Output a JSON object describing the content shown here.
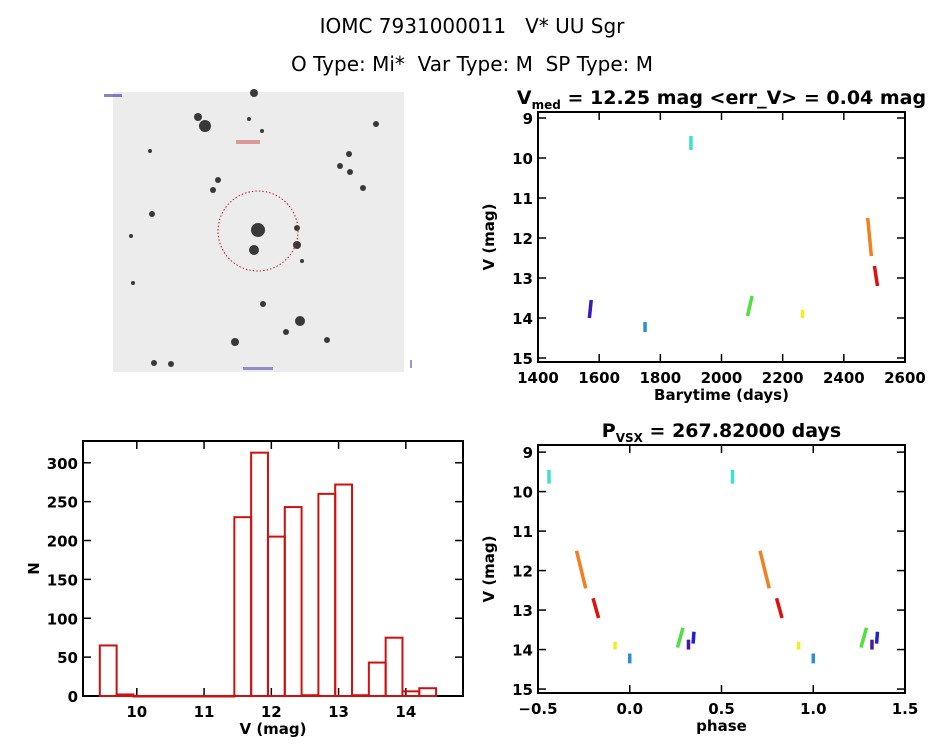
{
  "header": {
    "title": "IOMC 7931000011   V* UU Sgr",
    "subtitle": "O Type: Mi*  Var Type: M  SP Type: M"
  },
  "image_panel": {
    "description_label": "V* UU Sgr field image"
  },
  "chart_data": [
    {
      "type": "scatter",
      "title": "V_med = 12.25 mag <err_V> = 0.04 mag",
      "title_main": "V",
      "title_sub": "med",
      "title_rest": " = 12.25 mag <err_V> = 0.04 mag",
      "xlabel": "Barytime (days)",
      "ylabel": "V (mag)",
      "xlim": [
        1400,
        2600
      ],
      "ylim": [
        15.1,
        8.85
      ],
      "xticks": [
        1400,
        1600,
        1800,
        2000,
        2200,
        2400,
        2600
      ],
      "yticks": [
        9,
        10,
        11,
        12,
        13,
        14,
        15
      ],
      "segments": [
        {
          "x": [
            1568,
            1574
          ],
          "y": [
            14.0,
            13.55
          ],
          "color": "#3a1ab8"
        },
        {
          "x": [
            1750,
            1750
          ],
          "y": [
            14.35,
            14.1
          ],
          "color": "#2a8fd8"
        },
        {
          "x": [
            1900,
            1900
          ],
          "y": [
            9.8,
            9.45
          ],
          "color": "#40e0d0"
        },
        {
          "x": [
            2085,
            2100
          ],
          "y": [
            13.95,
            13.45
          ],
          "color": "#50e040"
        },
        {
          "x": [
            2265,
            2265
          ],
          "y": [
            14.0,
            13.8
          ],
          "color": "#f0f020"
        },
        {
          "x": [
            2478,
            2490
          ],
          "y": [
            11.5,
            12.45
          ],
          "color": "#f08020"
        },
        {
          "x": [
            2500,
            2510
          ],
          "y": [
            12.7,
            13.2
          ],
          "color": "#e01010"
        }
      ]
    },
    {
      "type": "scatter",
      "title_main": "P",
      "title_sub": "VSX",
      "title_rest": " = 267.82000 days",
      "xlabel": "phase",
      "ylabel": "V (mag)",
      "xlim": [
        -0.5,
        1.5
      ],
      "ylim": [
        15.1,
        8.82
      ],
      "xticks": [
        "-0.5",
        "0.0",
        "0.5",
        "1.0",
        "1.5"
      ],
      "yticks": [
        9,
        10,
        11,
        12,
        13,
        14,
        15
      ],
      "segments": [
        {
          "x": [
            -0.44,
            -0.44
          ],
          "y": [
            9.8,
            9.45
          ],
          "color": "#40e0d0"
        },
        {
          "x": [
            -0.29,
            -0.24
          ],
          "y": [
            11.5,
            12.45
          ],
          "color": "#f08020"
        },
        {
          "x": [
            -0.2,
            -0.17
          ],
          "y": [
            12.7,
            13.2
          ],
          "color": "#e01010"
        },
        {
          "x": [
            -0.08,
            -0.08
          ],
          "y": [
            14.0,
            13.8
          ],
          "color": "#f0f020"
        },
        {
          "x": [
            0.0,
            0.0
          ],
          "y": [
            14.35,
            14.1
          ],
          "color": "#2a8fd8"
        },
        {
          "x": [
            0.26,
            0.29
          ],
          "y": [
            13.95,
            13.45
          ],
          "color": "#50e040"
        },
        {
          "x": [
            0.32,
            0.32
          ],
          "y": [
            14.0,
            13.75
          ],
          "color": "#4a1a90"
        },
        {
          "x": [
            0.345,
            0.35
          ],
          "y": [
            13.85,
            13.55
          ],
          "color": "#2020d0"
        },
        {
          "x": [
            0.56,
            0.56
          ],
          "y": [
            9.8,
            9.45
          ],
          "color": "#40e0d0"
        },
        {
          "x": [
            0.71,
            0.76
          ],
          "y": [
            11.5,
            12.45
          ],
          "color": "#f08020"
        },
        {
          "x": [
            0.8,
            0.83
          ],
          "y": [
            12.7,
            13.2
          ],
          "color": "#e01010"
        },
        {
          "x": [
            0.92,
            0.92
          ],
          "y": [
            14.0,
            13.8
          ],
          "color": "#f0f020"
        },
        {
          "x": [
            1.0,
            1.0
          ],
          "y": [
            14.35,
            14.1
          ],
          "color": "#2a8fd8"
        },
        {
          "x": [
            1.26,
            1.29
          ],
          "y": [
            13.95,
            13.45
          ],
          "color": "#50e040"
        },
        {
          "x": [
            1.32,
            1.32
          ],
          "y": [
            14.0,
            13.75
          ],
          "color": "#4a1a90"
        },
        {
          "x": [
            1.345,
            1.35
          ],
          "y": [
            13.85,
            13.55
          ],
          "color": "#2020d0"
        }
      ]
    },
    {
      "type": "bar",
      "title": "",
      "xlabel": "V (mag)",
      "ylabel": "N",
      "xlim": [
        9.2,
        14.85
      ],
      "ylim": [
        0,
        328
      ],
      "xticks": [
        10,
        11,
        12,
        13,
        14
      ],
      "yticks": [
        0,
        50,
        100,
        150,
        200,
        250,
        300
      ],
      "bin_start": 9.45,
      "bin_width": 0.25,
      "values": [
        65,
        2,
        0,
        0,
        0,
        0,
        0,
        0,
        230,
        313,
        205,
        243,
        1,
        260,
        272,
        1,
        43,
        75,
        6,
        10
      ],
      "color": "#d01010"
    }
  ]
}
